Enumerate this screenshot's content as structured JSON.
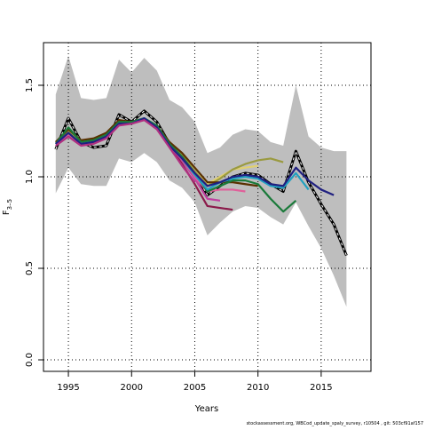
{
  "chart_data": {
    "type": "line",
    "xlabel": "Years",
    "ylabel": "F",
    "ylabel_sub": "3–5",
    "footnote": "stockassessment.org, WBCod_update_spaly_survey, r10504 , git: 503cf91af157",
    "x": [
      1994,
      1995,
      1996,
      1997,
      1998,
      1999,
      2000,
      2001,
      2002,
      2003,
      2004,
      2005,
      2006,
      2007,
      2008,
      2009,
      2010,
      2011,
      2012,
      2013,
      2014,
      2015,
      2016,
      2017
    ],
    "xlim": [
      1993.03,
      2018.94
    ],
    "ylim": [
      -0.063,
      1.733
    ],
    "xticks": [
      1995,
      2000,
      2005,
      2010,
      2015
    ],
    "yticks": [
      {
        "value": 0,
        "label": "0.0"
      },
      0.5,
      {
        "value": 1,
        "label": "1.0"
      },
      1.5
    ],
    "grid": true,
    "band": {
      "color": "#bebebe",
      "upper": [
        1.45,
        1.66,
        1.43,
        1.42,
        1.43,
        1.64,
        1.57,
        1.65,
        1.58,
        1.42,
        1.38,
        1.3,
        1.13,
        1.16,
        1.23,
        1.26,
        1.25,
        1.19,
        1.17,
        1.5,
        1.22,
        1.16,
        1.14,
        1.14
      ],
      "lower": [
        0.91,
        1.05,
        0.96,
        0.95,
        0.95,
        1.1,
        1.08,
        1.13,
        1.08,
        0.98,
        0.94,
        0.86,
        0.68,
        0.75,
        0.81,
        0.84,
        0.83,
        0.78,
        0.74,
        0.86,
        0.73,
        0.61,
        0.46,
        0.29
      ]
    },
    "series": [
      {
        "color": "#000000",
        "dashed": true,
        "values": [
          1.15,
          1.32,
          1.19,
          1.16,
          1.17,
          1.34,
          1.3,
          1.36,
          1.3,
          1.18,
          1.1,
          1.02,
          0.9,
          0.95,
          1.0,
          1.02,
          1.01,
          0.96,
          0.92,
          1.14,
          0.97,
          0.85,
          0.74,
          0.57
        ]
      },
      {
        "color": "#8b1a4a",
        "values": [
          1.18,
          1.24,
          1.18,
          1.19,
          1.22,
          1.29,
          1.29,
          1.32,
          1.27,
          1.17,
          1.07,
          0.96,
          0.84,
          0.83,
          0.82,
          null,
          null,
          null,
          null,
          null,
          null,
          null,
          null,
          null
        ]
      },
      {
        "color": "#c040a0",
        "values": [
          1.18,
          1.23,
          1.18,
          1.19,
          1.22,
          1.29,
          1.29,
          1.32,
          1.27,
          1.17,
          1.09,
          0.99,
          0.88,
          0.87,
          null,
          null,
          null,
          null,
          null,
          null,
          null,
          null,
          null,
          null
        ]
      },
      {
        "color": "#e0609a",
        "values": [
          1.18,
          1.23,
          1.18,
          1.19,
          1.22,
          1.29,
          1.3,
          1.32,
          1.27,
          1.17,
          1.1,
          1.0,
          0.92,
          0.93,
          0.93,
          0.92,
          null,
          null,
          null,
          null,
          null,
          null,
          null,
          null
        ]
      },
      {
        "color": "#e0d070",
        "values": [
          1.19,
          1.25,
          1.19,
          1.2,
          1.23,
          1.3,
          1.3,
          1.31,
          1.28,
          1.18,
          1.12,
          1.03,
          0.96,
          1.0,
          1.04,
          1.05,
          1.06,
          null,
          null,
          null,
          null,
          null,
          null,
          null
        ]
      },
      {
        "color": "#9a9a40",
        "values": [
          1.19,
          1.25,
          1.19,
          1.2,
          1.23,
          1.3,
          1.3,
          1.31,
          1.28,
          1.18,
          1.12,
          1.03,
          0.95,
          0.99,
          1.04,
          1.07,
          1.09,
          1.1,
          1.08,
          null,
          null,
          null,
          null,
          null
        ]
      },
      {
        "color": "#5a3000",
        "values": [
          1.19,
          1.26,
          1.2,
          1.21,
          1.24,
          1.31,
          1.3,
          1.31,
          1.28,
          1.19,
          1.13,
          1.05,
          0.97,
          0.97,
          0.97,
          0.96,
          0.95,
          null,
          null,
          null,
          null,
          null,
          null,
          null
        ]
      },
      {
        "color": "#1a7a3a",
        "values": [
          1.18,
          1.27,
          1.19,
          1.2,
          1.23,
          1.3,
          1.3,
          1.32,
          1.28,
          1.18,
          1.11,
          1.02,
          0.92,
          0.95,
          0.98,
          0.98,
          0.96,
          0.88,
          0.81,
          0.87,
          null,
          null,
          null,
          null
        ]
      },
      {
        "color": "#20a0c0",
        "values": [
          1.18,
          1.24,
          1.18,
          1.19,
          1.22,
          1.29,
          1.29,
          1.32,
          1.27,
          1.17,
          1.1,
          1.01,
          0.93,
          0.97,
          0.99,
          1.0,
          0.99,
          0.95,
          0.94,
          1.02,
          0.93,
          null,
          null,
          null
        ]
      },
      {
        "color": "#202080",
        "values": [
          1.18,
          1.24,
          1.18,
          1.19,
          1.22,
          1.29,
          1.29,
          1.32,
          1.27,
          1.17,
          1.1,
          1.02,
          0.95,
          0.97,
          1.0,
          1.01,
          1.0,
          0.96,
          0.95,
          1.05,
          0.98,
          0.93,
          0.9,
          null
        ]
      },
      {
        "color": "#b03080",
        "values": [
          1.17,
          1.22,
          1.17,
          1.18,
          1.21,
          1.28,
          1.29,
          1.31,
          1.26,
          1.16,
          1.06,
          0.97,
          null,
          null,
          null,
          null,
          null,
          null,
          null,
          null,
          null,
          null,
          null,
          null
        ]
      }
    ]
  }
}
